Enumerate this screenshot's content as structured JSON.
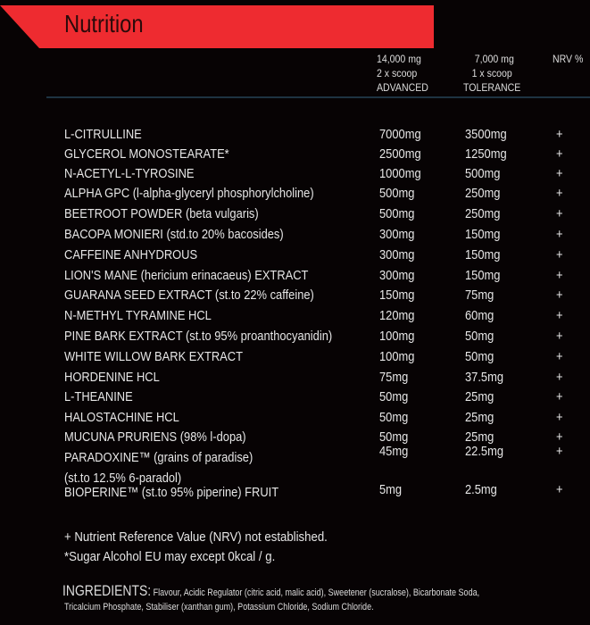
{
  "title": "Nutrition",
  "columns": {
    "advanced": [
      "14,000 mg",
      "2 x scoop",
      "ADVANCED"
    ],
    "tolerance": [
      "7,000 mg",
      "1 x scoop",
      "TOLERANCE"
    ],
    "nrv": "NRV %"
  },
  "rows": [
    {
      "name": "L-CITRULLINE",
      "advanced": "7000mg",
      "tolerance": "3500mg",
      "nrv": "+"
    },
    {
      "name": "GLYCEROL MONOSTEARATE*",
      "advanced": "2500mg",
      "tolerance": "1250mg",
      "nrv": "+"
    },
    {
      "name": "N-ACETYL-L-TYROSINE",
      "advanced": "1000mg",
      "tolerance": "500mg",
      "nrv": "+"
    },
    {
      "name": "ALPHA GPC (l-alpha-glyceryl phosphorylcholine)",
      "advanced": "500mg",
      "tolerance": "250mg",
      "nrv": "+"
    },
    {
      "name": "BEETROOT POWDER (beta vulgaris)",
      "advanced": "500mg",
      "tolerance": "250mg",
      "nrv": "+"
    },
    {
      "name": "BACOPA MONIERI (std.to 20% bacosides)",
      "advanced": "300mg",
      "tolerance": "150mg",
      "nrv": "+"
    },
    {
      "name": "CAFFEINE ANHYDROUS",
      "advanced": "300mg",
      "tolerance": "150mg",
      "nrv": "+"
    },
    {
      "name": "LION'S MANE (hericium erinacaeus) EXTRACT",
      "advanced": "300mg",
      "tolerance": "150mg",
      "nrv": "+"
    },
    {
      "name": "GUARANA SEED EXTRACT (st.to 22% caffeine)",
      "advanced": "150mg",
      "tolerance": "75mg",
      "nrv": "+"
    },
    {
      "name": "N-METHYL TYRAMINE HCL",
      "advanced": "120mg",
      "tolerance": "60mg",
      "nrv": "+"
    },
    {
      "name": "PINE BARK EXTRACT (st.to 95% proanthocyanidin)",
      "advanced": "100mg",
      "tolerance": "50mg",
      "nrv": "+"
    },
    {
      "name": "WHITE WILLOW BARK EXTRACT",
      "advanced": "100mg",
      "tolerance": "50mg",
      "nrv": "+"
    },
    {
      "name": "HORDENINE HCL",
      "advanced": "75mg",
      "tolerance": "37.5mg",
      "nrv": "+"
    },
    {
      "name": "L-THEANINE",
      "advanced": "50mg",
      "tolerance": "25mg",
      "nrv": "+"
    },
    {
      "name": "HALOSTACHINE HCL",
      "advanced": "50mg",
      "tolerance": "25mg",
      "nrv": "+"
    },
    {
      "name": "MUCUNA PRURIENS (98% l-dopa)",
      "advanced": "50mg",
      "tolerance": "25mg",
      "nrv": "+"
    },
    {
      "name": "PARADOXINE™ (grains of paradise)",
      "name2": "(st.to 12.5% 6-paradol)",
      "advanced": "45mg",
      "tolerance": "22.5mg",
      "nrv": "+"
    },
    {
      "name": "BIOPERINE™ (st.to 95% piperine) FRUIT",
      "advanced": "5mg",
      "tolerance": "2.5mg",
      "nrv": "+"
    }
  ],
  "notes": [
    "+ Nutrient Reference Value (NRV) not established.",
    " *Sugar Alcohol EU may except 0kcal / g."
  ],
  "ingredients": {
    "label": "INGREDIENTS:",
    "line1": " Flavour, Acidic Regulator (citric acid, malic acid), Sweetener (sucralose), Bicarbonate Soda,",
    "line2": "Tricalcium Phosphate, Stabiliser (xanthan gum), Potassium Chloride, Sodium Chloride."
  },
  "colors": {
    "banner": "#ee2b30",
    "background": "#070304",
    "rule": "#1e3342"
  }
}
